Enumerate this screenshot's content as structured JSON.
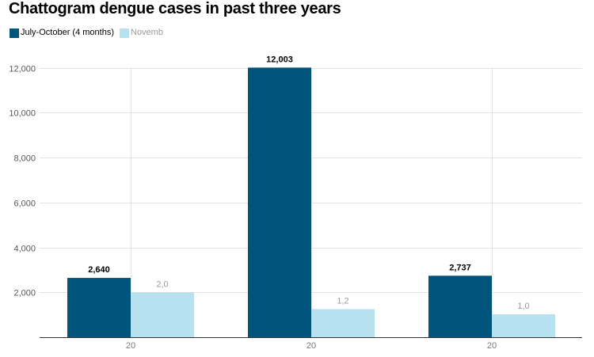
{
  "chart_data": {
    "type": "bar",
    "title": "Chattogram dengue cases in past three years",
    "categories": [
      "20",
      "20",
      "20"
    ],
    "series": [
      {
        "name": "July-October (4 months)",
        "color": "#00537a",
        "values": [
          2640,
          12003,
          2737
        ],
        "data_labels": [
          "2,640",
          "12,003",
          "2,737"
        ]
      },
      {
        "name": "Novemb",
        "color": "#b8e1ef",
        "values": [
          2000,
          1250,
          1020
        ],
        "data_labels": [
          "2,0",
          "1,2",
          "1,0"
        ]
      }
    ],
    "y_ticks": [
      2000,
      4000,
      6000,
      8000,
      10000,
      12000
    ],
    "y_tick_labels": [
      "2,000",
      "4,000",
      "6,000",
      "8,000",
      "10,000",
      "12,000"
    ],
    "ylim": [
      0,
      12000
    ],
    "grid": true,
    "legend_position": "top-left"
  }
}
